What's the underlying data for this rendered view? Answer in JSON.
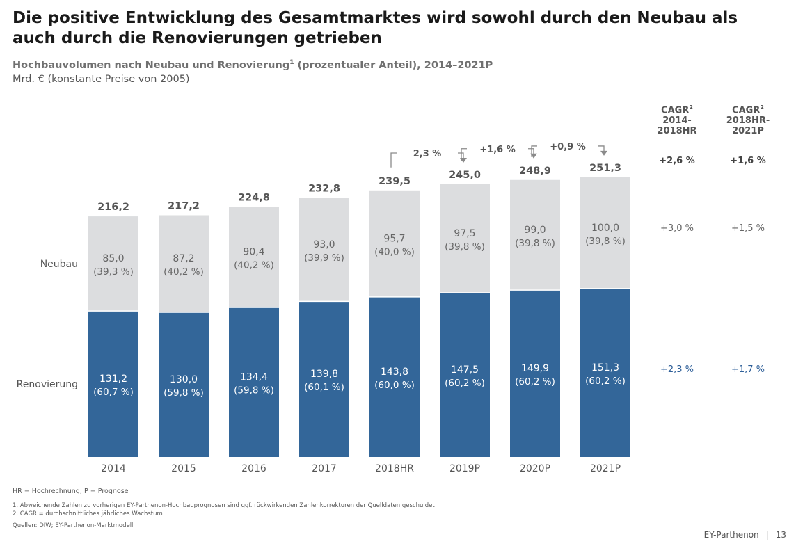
{
  "title": "Die positive Entwicklung des Gesamtmarktes wird sowohl durch den Neubau als auch durch die Renovierungen getrieben",
  "subtitle": "Hochbauvolumen nach Neubau und Renovierung",
  "subtitle_sup": "1",
  "subtitle_rest": " (prozentualer Anteil), 2014–2021P",
  "unit": "Mrd. € (konstante Preise von 2005)",
  "chart_data": {
    "type": "bar",
    "stacked": true,
    "categories": [
      "2014",
      "2015",
      "2016",
      "2017",
      "2018HR",
      "2019P",
      "2020P",
      "2021P"
    ],
    "series": [
      {
        "name": "Renovierung",
        "values": [
          131.2,
          130.0,
          134.4,
          139.8,
          143.8,
          147.5,
          149.9,
          151.3
        ],
        "labels": [
          "131,2",
          "130,0",
          "134,4",
          "139,8",
          "143,8",
          "147,5",
          "149,9",
          "151,3"
        ],
        "shares": [
          "(60,7 %)",
          "(59,8 %)",
          "(59,8 %)",
          "(60,1 %)",
          "(60,0 %)",
          "(60,2 %)",
          "(60,2 %)",
          "(60,2 %)"
        ],
        "color": "#336699"
      },
      {
        "name": "Neubau",
        "values": [
          85.0,
          87.2,
          90.4,
          93.0,
          95.7,
          97.5,
          99.0,
          100.0
        ],
        "labels": [
          "85,0",
          "87,2",
          "90,4",
          "93,0",
          "95,7",
          "97,5",
          "99,0",
          "100,0"
        ],
        "shares": [
          "(39,3 %)",
          "(40,2 %)",
          "(40,2 %)",
          "(39,9 %)",
          "(40,0 %)",
          "(39,8 %)",
          "(39,8 %)",
          "(39,8 %)"
        ],
        "color": "#dcdddf"
      }
    ],
    "totals": [
      216.2,
      217.2,
      224.8,
      232.8,
      239.5,
      245.0,
      248.9,
      251.3
    ],
    "total_labels": [
      "216,2",
      "217,2",
      "224,8",
      "232,8",
      "239,5",
      "245,0",
      "248,9",
      "251,3"
    ],
    "growth_annotations": [
      {
        "from": "2018HR",
        "to": "2019P",
        "label": "2,3 %"
      },
      {
        "from": "2019P",
        "to": "2020P",
        "label": "+1,6 %"
      },
      {
        "from": "2020P",
        "to": "2021P",
        "label": "+0,9 %"
      }
    ]
  },
  "cagr": {
    "headers": [
      {
        "line1": "CAGR",
        "sup": "2",
        "line2": "2014-",
        "line3": "2018HR"
      },
      {
        "line1": "CAGR",
        "sup": "2",
        "line2": "2018HR-",
        "line3": "2021P"
      }
    ],
    "total": [
      "+2,6 %",
      "+1,6 %"
    ],
    "neubau": [
      "+3,0 %",
      "+1,5 %"
    ],
    "renovierung": [
      "+2,3 %",
      "+1,7 %"
    ]
  },
  "footnotes": {
    "abbreviations": "HR = Hochrechnung; P = Prognose",
    "note1": "1. Abweichende Zahlen zu vorherigen EY-Parthenon-Hochbauprognosen sind ggf. rückwirkenden Zahlenkorrekturen der Quelldaten geschuldet",
    "note2": "2. CAGR = durchschnittliches jährliches Wachstum",
    "source": "Quellen: DIW; EY-Parthenon-Marktmodell"
  },
  "brand": {
    "name": "EY-Parthenon",
    "separator": "|",
    "page": "13"
  },
  "colors": {
    "renovierung": "#336699",
    "neubau": "#dcdddf",
    "arrow": "#8a8a8a"
  }
}
